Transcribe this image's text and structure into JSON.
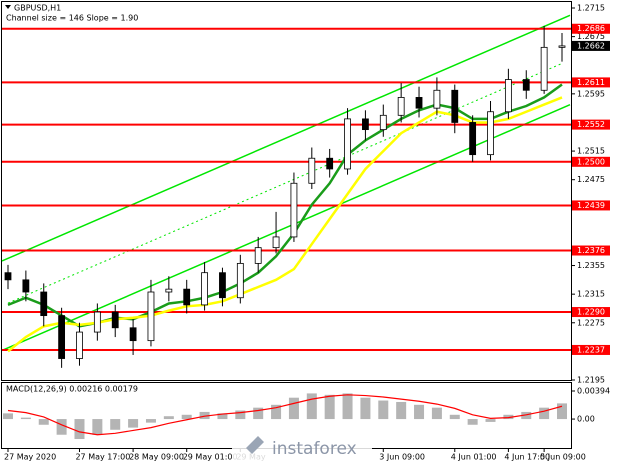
{
  "chart_data": {
    "type": "candlestick",
    "title": "GBPUSD,H1",
    "subtitle": "Channel size = 146 Slope = 1.90",
    "categories": [
      "27 May 2020",
      null,
      null,
      null,
      "27 May 17:00",
      null,
      null,
      "28 May 09:00",
      null,
      null,
      "29 May 01:00",
      null,
      null,
      "29 May",
      null,
      null,
      null,
      null,
      null,
      null,
      null,
      "3 Jun 09:00",
      null,
      null,
      null,
      "4 Jun 01:00",
      null,
      null,
      "4 Jun 17:00",
      null,
      "5 Jun 09:00",
      null
    ],
    "open": [
      1.2345,
      1.2335,
      1.2318,
      1.2285,
      1.2225,
      1.2262,
      1.229,
      1.2268,
      1.225,
      1.2318,
      1.2322,
      1.23,
      1.2345,
      1.231,
      1.2358,
      1.238,
      1.2395,
      1.247,
      1.2505,
      1.249,
      1.256,
      1.2545,
      1.2565,
      1.259,
      1.2575,
      1.26,
      1.2555,
      1.251,
      1.257,
      1.2615,
      1.26,
      1.266
    ],
    "high": [
      1.2356,
      1.2348,
      1.233,
      1.2296,
      1.2275,
      1.2302,
      1.23,
      1.228,
      1.2335,
      1.234,
      1.2335,
      1.236,
      1.2352,
      1.237,
      1.2395,
      1.243,
      1.2485,
      1.252,
      1.2518,
      1.2575,
      1.2572,
      1.258,
      1.261,
      1.2605,
      1.2618,
      1.2608,
      1.2565,
      1.2585,
      1.263,
      1.2628,
      1.269,
      1.268
    ],
    "low": [
      1.2322,
      1.2305,
      1.227,
      1.2212,
      1.2215,
      1.225,
      1.2255,
      1.223,
      1.2242,
      1.2305,
      1.2288,
      1.2292,
      1.2298,
      1.2302,
      1.2345,
      1.2372,
      1.2388,
      1.2462,
      1.2478,
      1.2482,
      1.253,
      1.2535,
      1.2555,
      1.2562,
      1.2565,
      1.254,
      1.25,
      1.2502,
      1.256,
      1.2588,
      1.2595,
      1.264
    ],
    "close": [
      1.2335,
      1.2318,
      1.2285,
      1.2225,
      1.2262,
      1.229,
      1.2268,
      1.225,
      1.2318,
      1.2322,
      1.23,
      1.2345,
      1.231,
      1.2358,
      1.238,
      1.2395,
      1.247,
      1.2505,
      1.249,
      1.256,
      1.2545,
      1.2565,
      1.259,
      1.2575,
      1.26,
      1.2555,
      1.251,
      1.257,
      1.2615,
      1.26,
      1.266,
      1.2662
    ],
    "series": [
      {
        "color": "#1a9c1a",
        "values": [
          1.23,
          1.231,
          1.23,
          1.2285,
          1.227,
          1.2275,
          1.2282,
          1.228,
          1.229,
          1.2302,
          1.2305,
          1.231,
          1.2318,
          1.233,
          1.2345,
          1.2368,
          1.24,
          1.244,
          1.247,
          1.251,
          1.253,
          1.2545,
          1.256,
          1.2572,
          1.258,
          1.2575,
          1.256,
          1.256,
          1.257,
          1.2578,
          1.259,
          1.2608
        ]
      },
      {
        "color": "#ffff00",
        "values": [
          1.2235,
          1.2255,
          1.227,
          1.2275,
          1.2272,
          1.2275,
          1.228,
          1.2282,
          1.2285,
          1.2292,
          1.2298,
          1.23,
          1.2305,
          1.2315,
          1.2325,
          1.2335,
          1.235,
          1.2385,
          1.242,
          1.2455,
          1.249,
          1.2515,
          1.254,
          1.2555,
          1.257,
          1.2565,
          1.2555,
          1.2555,
          1.256,
          1.257,
          1.258,
          1.259
        ]
      }
    ],
    "channel": {
      "color": "#00e600",
      "upper": [
        1.2365,
        1.27
      ],
      "lower": [
        1.224,
        1.2575
      ]
    },
    "levels": {
      "color": "#ff0000",
      "values": [
        1.2686,
        1.2611,
        1.2552,
        {
          "value": 1.25,
          "label": "1.2500"
        },
        1.2439,
        1.2376,
        {
          "value": 1.229,
          "label": "1.2290"
        },
        1.2237
      ]
    },
    "last_price": 1.2662,
    "ylim": [
      1.2195,
      1.2715
    ],
    "yticks": [
      1.2715,
      1.2675,
      1.2595,
      1.2515,
      1.2475,
      1.2355,
      1.2315,
      1.2275,
      1.2195
    ],
    "macd": {
      "title": "MACD(12,26,9) 0.00216 0.00179",
      "histogram": [
        0.0008,
        0.0002,
        -0.0008,
        -0.0022,
        -0.0028,
        -0.0022,
        -0.0015,
        -0.0012,
        -0.0005,
        0.0004,
        0.0006,
        0.001,
        0.0008,
        0.0012,
        0.0016,
        0.002,
        0.003,
        0.0036,
        0.0034,
        0.0036,
        0.003,
        0.0026,
        0.0024,
        0.002,
        0.0016,
        0.0006,
        -0.0008,
        -0.0004,
        0.0006,
        0.001,
        0.0016,
        0.0022
      ],
      "signal": {
        "color": "#ff0000",
        "values": [
          0.0012,
          0.0009,
          0.0003,
          -0.0008,
          -0.0018,
          -0.0022,
          -0.002,
          -0.0016,
          -0.0012,
          -0.0006,
          -0.0001,
          0.0004,
          0.0007,
          0.0009,
          0.0012,
          0.0016,
          0.0022,
          0.0028,
          0.0032,
          0.0034,
          0.0033,
          0.0031,
          0.0028,
          0.0025,
          0.0021,
          0.0015,
          0.0006,
          0.0001,
          0.0002,
          0.0006,
          0.0011,
          0.0018
        ]
      },
      "ylim": [
        -0.0035,
        0.0045
      ],
      "yticks": [
        {
          "value": 0.00394,
          "label": "0.00394"
        },
        {
          "value": 0,
          "label": "0.00"
        }
      ]
    },
    "watermark": "instaforex"
  }
}
